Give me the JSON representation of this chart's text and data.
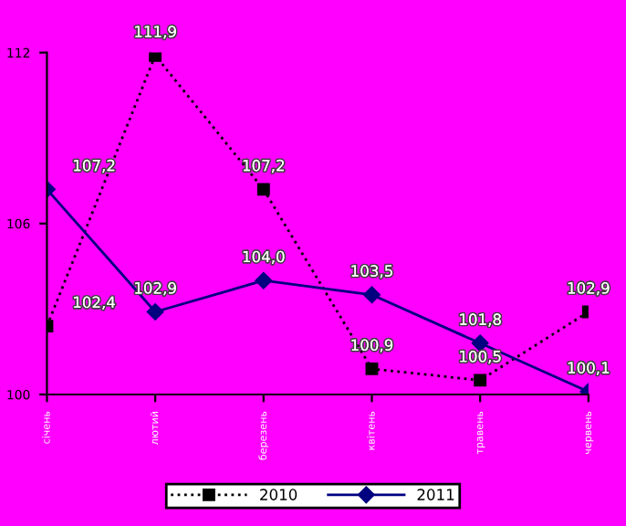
{
  "chart_data": {
    "type": "line",
    "categories": [
      "січень",
      "лютий",
      "березень",
      "квітень",
      "травень",
      "червень"
    ],
    "series": [
      {
        "name": "2010",
        "color": "#000000",
        "line_style": "dotted",
        "marker": "square",
        "values": [
          102.4,
          111.9,
          107.2,
          100.9,
          100.5,
          102.9
        ],
        "value_labels": [
          "102,4",
          "111,9",
          "107,2",
          "100,9",
          "100,5",
          "102,9"
        ]
      },
      {
        "name": "2011",
        "color": "#000080",
        "line_style": "solid",
        "marker": "diamond",
        "values": [
          107.2,
          102.9,
          104.0,
          103.5,
          101.8,
          100.1
        ],
        "value_labels": [
          "107,2",
          "102,9",
          "104,0",
          "103,5",
          "101,8",
          "100,1"
        ]
      }
    ],
    "ylim": [
      100,
      112
    ],
    "yticks": [
      100,
      106,
      112
    ],
    "grid": false,
    "legend": "bottom"
  }
}
